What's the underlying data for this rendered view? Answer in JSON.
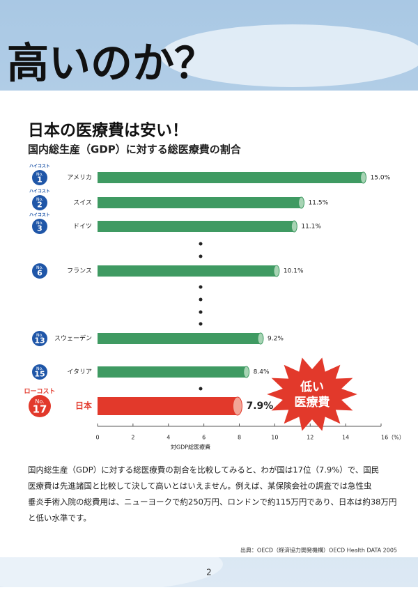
{
  "header": {
    "title": "高いのか？"
  },
  "chart_data": {
    "type": "bar",
    "orientation": "horizontal",
    "title": "日本の医療費は安い！",
    "subtitle": "国内総生産（GDP）に対する総医療費の割合",
    "categories": [
      "アメリカ",
      "スイス",
      "ドイツ",
      "フランス",
      "スウェーデン",
      "イタリア",
      "日本"
    ],
    "values": [
      15.0,
      11.5,
      11.1,
      10.1,
      9.2,
      8.4,
      7.9
    ],
    "value_labels": [
      "15.0%",
      "11.5%",
      "11.1%",
      "10.1%",
      "9.2%",
      "8.4%",
      "7.9%"
    ],
    "colors": [
      "#3f9a62",
      "#3f9a62",
      "#3f9a62",
      "#3f9a62",
      "#3f9a62",
      "#3f9a62",
      "#e2392b"
    ],
    "badges": [
      {
        "tag": "ハイコスト",
        "label": "No.",
        "number": 1
      },
      {
        "tag": "ハイコスト",
        "label": "No.",
        "number": 2
      },
      {
        "tag": "ハイコスト",
        "label": "No.",
        "number": 3
      },
      {
        "label": "No.",
        "number": 6
      },
      {
        "label": "No.",
        "number": 13
      },
      {
        "label": "No.",
        "number": 15
      },
      {
        "tag": "ローコスト",
        "label": "No.",
        "number": 17
      }
    ],
    "xlim": [
      0,
      16
    ],
    "xticks": [
      0,
      2,
      4,
      6,
      8,
      10,
      12,
      14,
      {
        "value": 16,
        "label": "16（%）"
      }
    ],
    "xlabel": "対GDP総医療費",
    "annotation": [
      "低い",
      "医療費"
    ]
  },
  "paragraph": [
    "国内総生産（GDP）に対する総医療費の割合を比較してみると、わが国は17位（7.9%）で、国民",
    "医療費は先進諸国と比較して決して高いとはいえません。例えば、某保険会社の調査では急性虫",
    "垂炎手術入院の総費用は、ニューヨークで約250万円、ロンドンで約115万円であり、日本は約38万円",
    "と低い水準です。"
  ],
  "source": "出典：OECD（経済協力開発機構）OECD Health DATA 2005",
  "page_number": "2"
}
